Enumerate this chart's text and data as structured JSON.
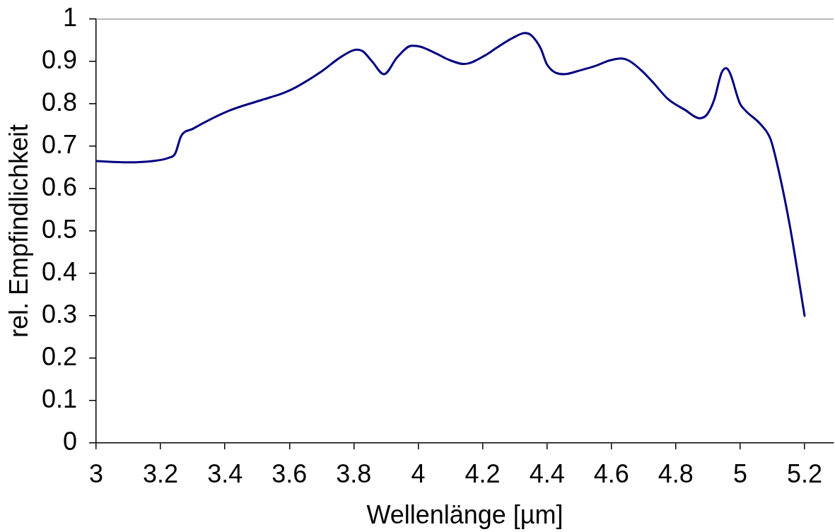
{
  "chart_data": {
    "type": "line",
    "xlabel": "Wellenlänge [µm]",
    "ylabel": "rel. Empfindlichkeit",
    "x": [
      3.0,
      3.1,
      3.175,
      3.227,
      3.245,
      3.264,
      3.3,
      3.41,
      3.509,
      3.583,
      3.62,
      3.701,
      3.761,
      3.809,
      3.828,
      3.857,
      3.894,
      3.935,
      3.98,
      4.006,
      4.058,
      4.095,
      4.143,
      4.207,
      4.245,
      4.29,
      4.332,
      4.351,
      4.381,
      4.4,
      4.453,
      4.503,
      4.556,
      4.593,
      4.631,
      4.654,
      4.696,
      4.73,
      4.775,
      4.828,
      4.874,
      4.897,
      4.919,
      4.942,
      4.956,
      4.968,
      4.999,
      5.018,
      5.063,
      5.094,
      5.116,
      5.154,
      5.2
    ],
    "series": [
      {
        "color": "#000080",
        "values": [
          0.665,
          0.662,
          0.665,
          0.673,
          0.682,
          0.724,
          0.741,
          0.783,
          0.808,
          0.826,
          0.839,
          0.877,
          0.911,
          0.928,
          0.924,
          0.9,
          0.87,
          0.91,
          0.937,
          0.935,
          0.918,
          0.904,
          0.894,
          0.914,
          0.933,
          0.954,
          0.967,
          0.962,
          0.93,
          0.893,
          0.87,
          0.879,
          0.891,
          0.902,
          0.907,
          0.902,
          0.877,
          0.85,
          0.812,
          0.786,
          0.766,
          0.775,
          0.809,
          0.873,
          0.884,
          0.873,
          0.801,
          0.783,
          0.752,
          0.717,
          0.654,
          0.513,
          0.3
        ]
      }
    ],
    "xlim": [
      3,
      5.29
    ],
    "ylim": [
      0,
      1
    ],
    "xticks": [
      3,
      3.2,
      3.4,
      3.6,
      3.8,
      4,
      4.2,
      4.4,
      4.6,
      4.8,
      5,
      5.2
    ],
    "yticks": [
      0,
      0.1,
      0.2,
      0.3,
      0.4,
      0.5,
      0.6,
      0.7,
      0.8,
      0.9,
      1
    ],
    "marker": "none",
    "line_style": "solid"
  }
}
